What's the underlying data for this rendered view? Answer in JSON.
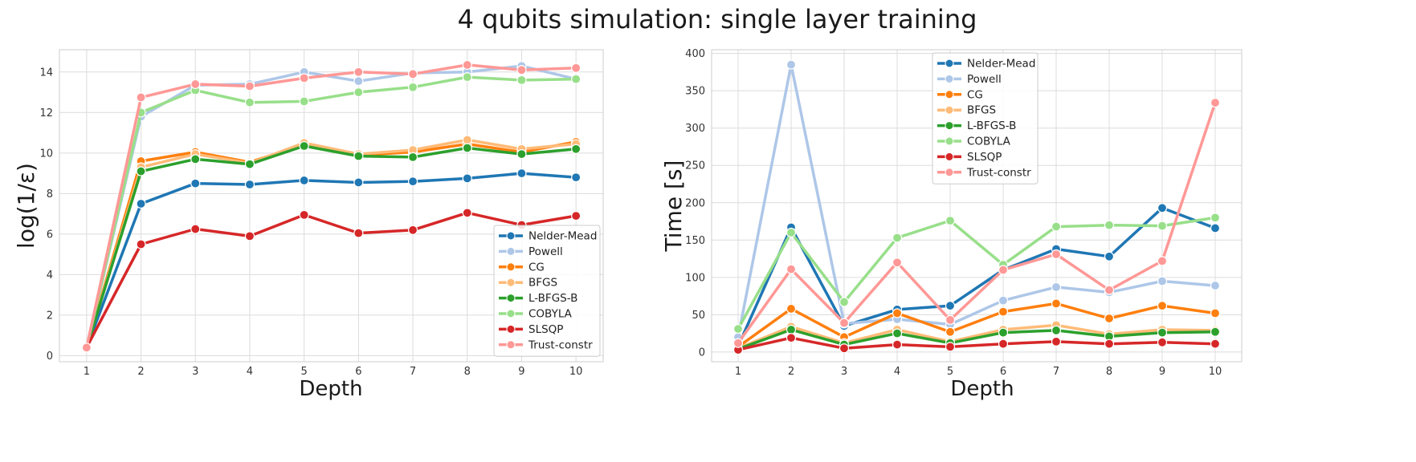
{
  "figure_title": "4 qubits simulation: single layer training",
  "chart_data": [
    {
      "type": "line",
      "xlabel": "Depth",
      "ylabel": "log(1/ε)",
      "xlim": [
        0.5,
        10.5
      ],
      "ylim": [
        -0.3,
        15.1
      ],
      "xticks": [
        1,
        2,
        3,
        4,
        5,
        6,
        7,
        8,
        9,
        10
      ],
      "yticks": [
        0,
        2,
        4,
        6,
        8,
        10,
        12,
        14
      ],
      "grid": true,
      "legend_position": "lower-right",
      "x": [
        1,
        2,
        3,
        4,
        5,
        6,
        7,
        8,
        9,
        10
      ],
      "series": [
        {
          "name": "Nelder-Mead",
          "color": "#1f77b4",
          "values": [
            0.4,
            7.5,
            8.5,
            8.45,
            8.65,
            8.55,
            8.6,
            8.75,
            9.0,
            8.8
          ]
        },
        {
          "name": "Powell",
          "color": "#aec7e8",
          "values": [
            0.4,
            11.8,
            13.35,
            13.4,
            14.0,
            13.55,
            13.95,
            14.0,
            14.3,
            13.65
          ]
        },
        {
          "name": "CG",
          "color": "#ff7f0e",
          "values": [
            0.4,
            9.6,
            10.05,
            9.55,
            10.4,
            9.9,
            10.05,
            10.45,
            10.05,
            10.55
          ]
        },
        {
          "name": "BFGS",
          "color": "#ffbb78",
          "values": [
            0.4,
            9.3,
            9.95,
            9.5,
            10.5,
            9.95,
            10.15,
            10.65,
            10.2,
            10.45
          ]
        },
        {
          "name": "L-BFGS-B",
          "color": "#2ca02c",
          "values": [
            0.4,
            9.1,
            9.7,
            9.45,
            10.35,
            9.85,
            9.8,
            10.25,
            9.95,
            10.2
          ]
        },
        {
          "name": "COBYLA",
          "color": "#98df8a",
          "values": [
            0.4,
            12.0,
            13.1,
            12.5,
            12.55,
            13.0,
            13.25,
            13.75,
            13.6,
            13.65
          ]
        },
        {
          "name": "SLSQP",
          "color": "#d62728",
          "values": [
            0.4,
            5.5,
            6.25,
            5.9,
            6.95,
            6.05,
            6.2,
            7.05,
            6.45,
            6.9
          ]
        },
        {
          "name": "Trust-constr",
          "color": "#ff9896",
          "values": [
            0.4,
            12.75,
            13.4,
            13.3,
            13.7,
            14.0,
            13.9,
            14.35,
            14.1,
            14.2
          ]
        }
      ]
    },
    {
      "type": "line",
      "xlabel": "Depth",
      "ylabel": "Time [s]",
      "xlim": [
        0.5,
        10.5
      ],
      "ylim": [
        -13,
        405
      ],
      "xticks": [
        1,
        2,
        3,
        4,
        5,
        6,
        7,
        8,
        9,
        10
      ],
      "yticks": [
        0,
        50,
        100,
        150,
        200,
        250,
        300,
        350,
        400
      ],
      "grid": true,
      "legend_position": "upper-center",
      "x": [
        1,
        2,
        3,
        4,
        5,
        6,
        7,
        8,
        9,
        10
      ],
      "series": [
        {
          "name": "Nelder-Mead",
          "color": "#1f77b4",
          "values": [
            8,
            167,
            35,
            57,
            62,
            110,
            138,
            128,
            193,
            166
          ]
        },
        {
          "name": "Powell",
          "color": "#aec7e8",
          "values": [
            20,
            385,
            38,
            44,
            37,
            69,
            87,
            80,
            95,
            89
          ]
        },
        {
          "name": "CG",
          "color": "#ff7f0e",
          "values": [
            7,
            58,
            20,
            52,
            27,
            54,
            65,
            45,
            62,
            52
          ]
        },
        {
          "name": "BFGS",
          "color": "#ffbb78",
          "values": [
            5,
            34,
            12,
            30,
            14,
            30,
            36,
            24,
            30,
            29
          ]
        },
        {
          "name": "L-BFGS-B",
          "color": "#2ca02c",
          "values": [
            4,
            30,
            10,
            25,
            12,
            26,
            29,
            21,
            26,
            27
          ]
        },
        {
          "name": "COBYLA",
          "color": "#98df8a",
          "values": [
            31,
            160,
            67,
            153,
            176,
            117,
            168,
            170,
            169,
            180
          ]
        },
        {
          "name": "SLSQP",
          "color": "#d62728",
          "values": [
            3,
            19,
            5,
            10,
            7,
            11,
            14,
            11,
            13,
            11
          ]
        },
        {
          "name": "Trust-constr",
          "color": "#ff9896",
          "values": [
            12,
            111,
            39,
            120,
            43,
            110,
            131,
            83,
            122,
            334
          ]
        }
      ]
    }
  ]
}
